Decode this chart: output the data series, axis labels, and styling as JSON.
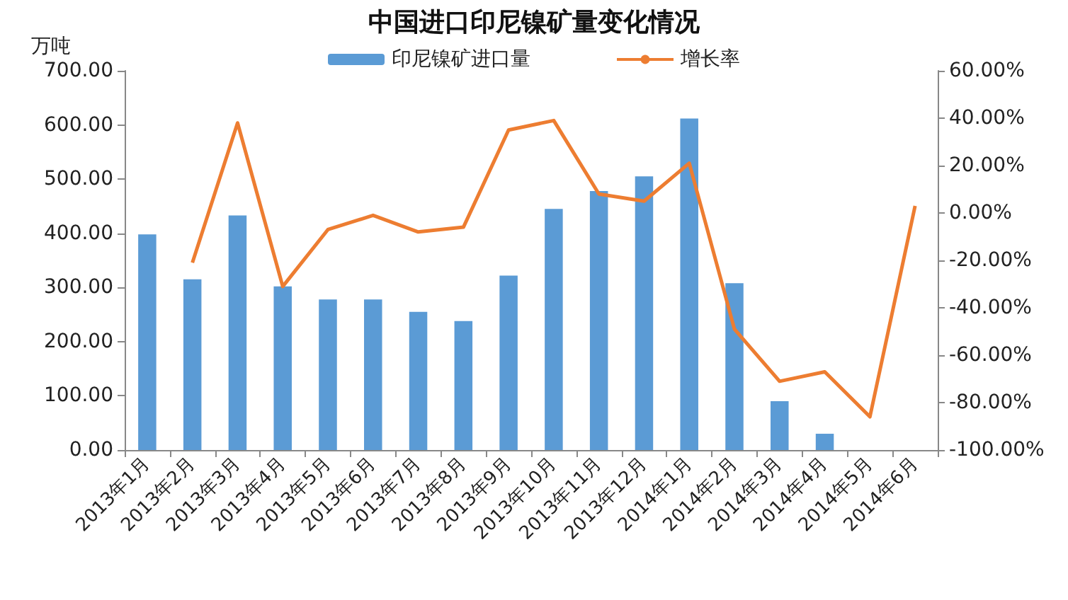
{
  "chart_data": {
    "type": "bar",
    "title": "中国进口印尼镍矿量变化情况",
    "ylabel": "万吨",
    "categories": [
      "2013年1月",
      "2013年2月",
      "2013年3月",
      "2013年4月",
      "2013年5月",
      "2013年6月",
      "2013年7月",
      "2013年8月",
      "2013年9月",
      "2013年10月",
      "2013年11月",
      "2013年12月",
      "2014年1月",
      "2014年2月",
      "2014年3月",
      "2014年4月",
      "2014年5月",
      "2014年6月"
    ],
    "series": [
      {
        "name": "印尼镍矿进口量",
        "color": "#5b9bd5",
        "values": [
          398,
          315,
          433,
          302,
          278,
          278,
          255,
          238,
          322,
          445,
          478,
          505,
          612,
          308,
          90,
          30,
          null,
          null
        ]
      },
      {
        "name": "增长率",
        "type": "line",
        "axis": "y2",
        "color": "#ed7d31",
        "values": [
          null,
          -21,
          38,
          -31,
          -7,
          -1,
          -8,
          -6,
          35,
          39,
          8,
          5,
          21,
          -49,
          -71,
          -67,
          -86,
          3
        ]
      }
    ],
    "ylim": [
      0,
      700
    ],
    "yticks": [
      {
        "value": 0,
        "label": "0.00"
      },
      {
        "value": 100,
        "label": "100.00"
      },
      {
        "value": 200,
        "label": "200.00"
      },
      {
        "value": 300,
        "label": "300.00"
      },
      {
        "value": 400,
        "label": "400.00"
      },
      {
        "value": 500,
        "label": "500.00"
      },
      {
        "value": 600,
        "label": "600.00"
      },
      {
        "value": 700,
        "label": "700.00"
      }
    ],
    "y2lim": [
      -100,
      60
    ],
    "y2ticks": [
      {
        "value": -100,
        "label": "-100.00%"
      },
      {
        "value": -80,
        "label": "-80.00%"
      },
      {
        "value": -60,
        "label": "-60.00%"
      },
      {
        "value": -40,
        "label": "-40.00%"
      },
      {
        "value": -20,
        "label": "-20.00%"
      },
      {
        "value": 0,
        "label": "0.00%"
      },
      {
        "value": 20,
        "label": "20.00%"
      },
      {
        "value": 40,
        "label": "40.00%"
      },
      {
        "value": 60,
        "label": "60.00%"
      }
    ],
    "grid": false,
    "legend": "top",
    "marker": "none"
  }
}
